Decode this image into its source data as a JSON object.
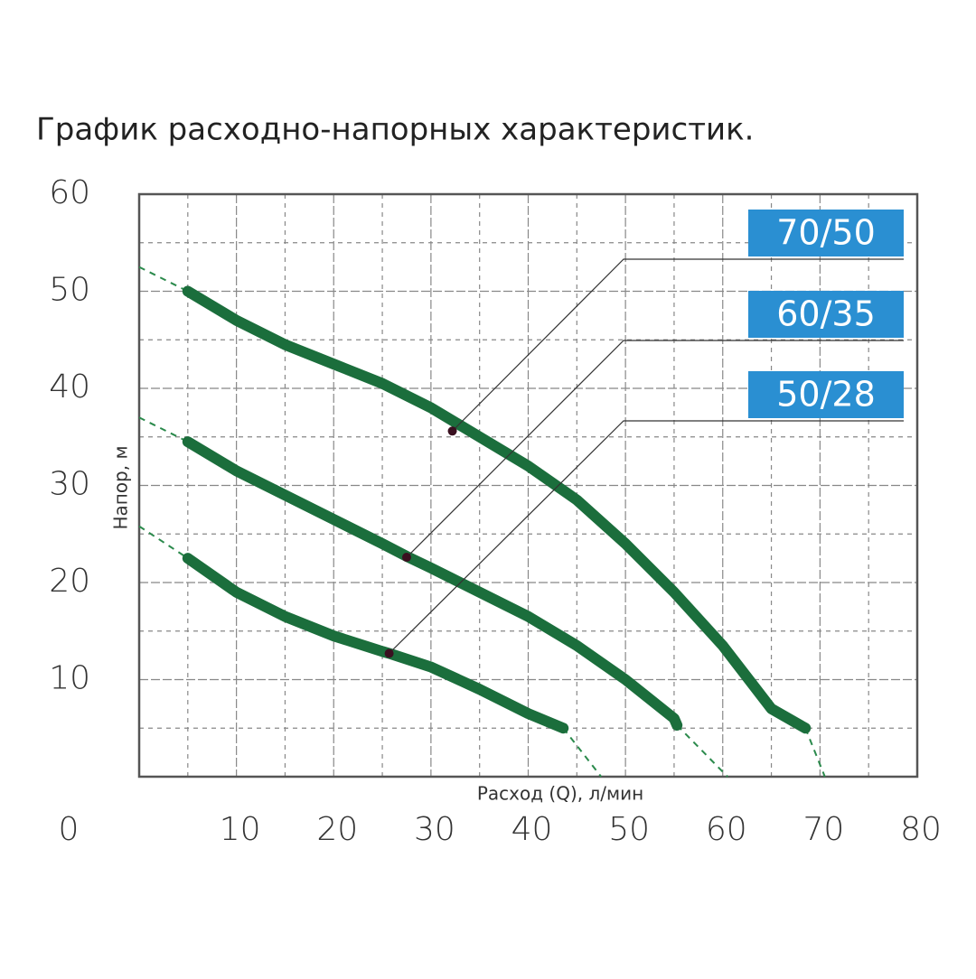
{
  "chart_data": {
    "type": "line",
    "title": "График расходно-напорных характеристик.",
    "x_label": "Расход (Q), л/мин",
    "y_label": "Напор, м",
    "xlim": [
      0,
      80
    ],
    "ylim": [
      0,
      60
    ],
    "xticks": [
      0,
      10,
      20,
      30,
      40,
      50,
      60,
      70,
      80
    ],
    "yticks": [
      10,
      20,
      30,
      40,
      50,
      60
    ],
    "minor_xticks": [
      5,
      15,
      25,
      35,
      45,
      55,
      65,
      75
    ],
    "minor_yticks": [
      5,
      15,
      25,
      35,
      45,
      55
    ],
    "grid": true,
    "series": [
      {
        "name": "70/50",
        "color": "#1b6e3c",
        "x": [
          5,
          10,
          15,
          20,
          25,
          30,
          35,
          40,
          45,
          50,
          55,
          60,
          65,
          68.5
        ],
        "values": [
          50,
          47,
          44.5,
          42.5,
          40.5,
          38,
          35,
          32,
          28.5,
          24,
          19,
          13.5,
          7,
          5
        ],
        "extension_start": {
          "x": [
            0,
            5
          ],
          "values": [
            52.5,
            50
          ]
        },
        "extension_end": {
          "x": [
            68.5,
            70.5
          ],
          "values": [
            5,
            0
          ]
        },
        "point": {
          "x": 32.2,
          "value": 35.6
        }
      },
      {
        "name": "60/35",
        "color": "#1b6e3c",
        "x": [
          5,
          10,
          15,
          20,
          25,
          27.5,
          30,
          35,
          40,
          45,
          50,
          55,
          55.3
        ],
        "values": [
          34.5,
          31.5,
          29,
          26.5,
          24,
          22.7,
          21.5,
          19,
          16.5,
          13.5,
          10,
          6,
          5.3
        ],
        "extension_start": {
          "x": [
            0,
            5
          ],
          "values": [
            37,
            34.5
          ]
        },
        "extension_end": {
          "x": [
            55.3,
            60.5
          ],
          "values": [
            5.3,
            0
          ]
        },
        "point": {
          "x": 27.5,
          "value": 22.6
        }
      },
      {
        "name": "50/28",
        "color": "#1b6e3c",
        "x": [
          5,
          10,
          15,
          20,
          25,
          25.7,
          30,
          35,
          40,
          43.6
        ],
        "values": [
          22.5,
          19,
          16.5,
          14.5,
          12.9,
          12.7,
          11.3,
          9,
          6.5,
          5
        ],
        "extension_start": {
          "x": [
            0,
            5
          ],
          "values": [
            25.8,
            22.5
          ]
        },
        "extension_end": {
          "x": [
            43.6,
            47.5
          ],
          "values": [
            5,
            0
          ]
        },
        "point": {
          "x": 25.7,
          "value": 12.7
        }
      }
    ]
  }
}
